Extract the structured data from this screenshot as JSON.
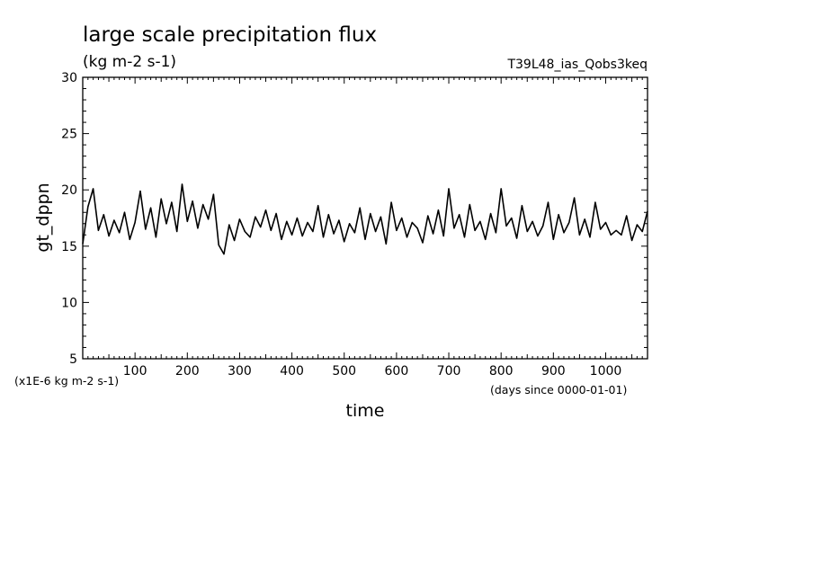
{
  "chart_data": {
    "type": "line",
    "title": "large scale precipitation flux",
    "subtitle": "(kg m-2 s-1)",
    "run_name": "T39L48_ias_Qobs3keq",
    "xlabel": "time",
    "x_units": "(days since 0000-01-01)",
    "ylabel": "gt_dppn",
    "y_units": "(x1E-6 kg m-2 s-1)",
    "xlim": [
      0,
      1080
    ],
    "ylim": [
      5,
      30
    ],
    "x_ticks": [
      "100",
      "200",
      "300",
      "400",
      "500",
      "600",
      "700",
      "800",
      "900",
      "1000"
    ],
    "y_ticks": [
      "5",
      "10",
      "15",
      "20",
      "25",
      "30"
    ],
    "grid": false,
    "series": [
      {
        "x": [
          0,
          10,
          20,
          30,
          40,
          50,
          60,
          70,
          80,
          90,
          100,
          110,
          120,
          130,
          140,
          150,
          160,
          170,
          180,
          190,
          200,
          210,
          220,
          230,
          240,
          250,
          260,
          270,
          280,
          290,
          300,
          310,
          320,
          330,
          340,
          350,
          360,
          370,
          380,
          390,
          400,
          410,
          420,
          430,
          440,
          450,
          460,
          470,
          480,
          490,
          500,
          510,
          520,
          530,
          540,
          550,
          560,
          570,
          580,
          590,
          600,
          610,
          620,
          630,
          640,
          650,
          660,
          670,
          680,
          690,
          700,
          710,
          720,
          730,
          740,
          750,
          760,
          770,
          780,
          790,
          800,
          810,
          820,
          830,
          840,
          850,
          860,
          870,
          880,
          890,
          900,
          910,
          920,
          930,
          940,
          950,
          960,
          970,
          980,
          990,
          1000,
          1010,
          1020,
          1030,
          1040,
          1050,
          1060,
          1070,
          1080
        ],
        "y": [
          15.2,
          18.5,
          20.1,
          16.4,
          17.8,
          15.9,
          17.3,
          16.2,
          18.0,
          15.6,
          17.1,
          19.9,
          16.5,
          18.4,
          15.8,
          19.2,
          17.0,
          18.9,
          16.3,
          20.5,
          17.2,
          19.0,
          16.6,
          18.7,
          17.4,
          19.6,
          15.1,
          14.3,
          16.9,
          15.5,
          17.4,
          16.3,
          15.8,
          17.6,
          16.7,
          18.2,
          16.4,
          17.9,
          15.6,
          17.2,
          16.0,
          17.5,
          15.9,
          17.1,
          16.3,
          18.6,
          15.8,
          17.8,
          16.1,
          17.3,
          15.4,
          17.0,
          16.2,
          18.4,
          15.6,
          17.9,
          16.3,
          17.6,
          15.2,
          18.9,
          16.4,
          17.5,
          15.8,
          17.1,
          16.6,
          15.3,
          17.7,
          16.1,
          18.2,
          15.9,
          20.1,
          16.6,
          17.8,
          15.8,
          18.7,
          16.4,
          17.2,
          15.6,
          17.9,
          16.2,
          20.1,
          16.8,
          17.5,
          15.7,
          18.6,
          16.3,
          17.2,
          15.9,
          16.8,
          18.9,
          15.6,
          17.8,
          16.2,
          17.1,
          19.3,
          16.0,
          17.4,
          15.8,
          18.9,
          16.5,
          17.1,
          16.0,
          16.4,
          16.0,
          17.7,
          15.5,
          16.9,
          16.3,
          18.1
        ]
      }
    ]
  }
}
